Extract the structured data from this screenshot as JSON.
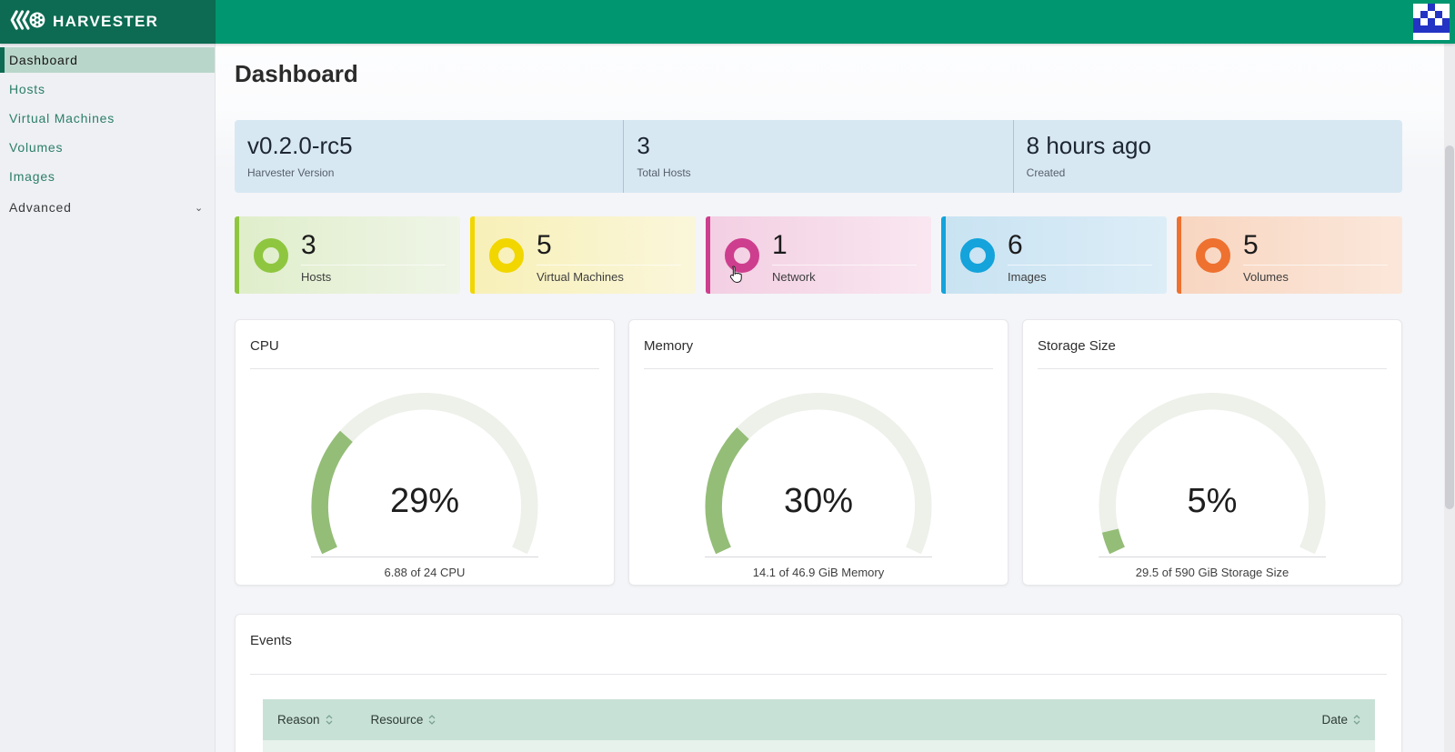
{
  "app": {
    "brand": "HARVESTER"
  },
  "sidebar": {
    "items": [
      {
        "label": "Dashboard",
        "selected": true
      },
      {
        "label": "Hosts"
      },
      {
        "label": "Virtual Machines"
      },
      {
        "label": "Volumes"
      },
      {
        "label": "Images"
      },
      {
        "label": "Advanced",
        "expandable": true
      }
    ]
  },
  "page": {
    "title": "Dashboard"
  },
  "info_strip": {
    "sections": [
      {
        "value": "v0.2.0-rc5",
        "label": "Harvester Version"
      },
      {
        "value": "3",
        "label": "Total Hosts"
      },
      {
        "value": "8 hours ago",
        "label": "Created"
      }
    ]
  },
  "stats": {
    "cards": [
      {
        "count": "3",
        "label": "Hosts",
        "accent": "#8fc640",
        "bg_from": "#e0eecb",
        "bg_to": "#eff5e7"
      },
      {
        "count": "5",
        "label": "Virtual Machines",
        "accent": "#f2d600",
        "bg_from": "#f8f0b8",
        "bg_to": "#faf6da"
      },
      {
        "count": "1",
        "label": "Network",
        "accent": "#ce3e8e",
        "bg_from": "#f3cfe3",
        "bg_to": "#f9e7f0"
      },
      {
        "count": "6",
        "label": "Images",
        "accent": "#14a3db",
        "bg_from": "#c9e3f2",
        "bg_to": "#dcedf7"
      },
      {
        "count": "5",
        "label": "Volumes",
        "accent": "#ee7130",
        "bg_from": "#f8d6c1",
        "bg_to": "#fbe7da"
      }
    ]
  },
  "gauges": [
    {
      "title": "CPU",
      "percent": 29,
      "percent_label": "29%",
      "detail": "6.88 of 24 CPU"
    },
    {
      "title": "Memory",
      "percent": 30,
      "percent_label": "30%",
      "detail": "14.1 of 46.9 GiB Memory"
    },
    {
      "title": "Storage Size",
      "percent": 5,
      "percent_label": "5%",
      "detail": "29.5 of 590 GiB Storage Size"
    }
  ],
  "chart_data": [
    {
      "type": "gauge",
      "title": "CPU",
      "value_percent": 29,
      "used": 6.88,
      "total": 24,
      "unit": "CPU",
      "label": "6.88 of 24 CPU",
      "fill_color": "#94bd77",
      "track_color": "#edf1ea"
    },
    {
      "type": "gauge",
      "title": "Memory",
      "value_percent": 30,
      "used": 14.1,
      "total": 46.9,
      "unit": "GiB",
      "label": "14.1 of 46.9 GiB Memory",
      "fill_color": "#94bd77",
      "track_color": "#edf1ea"
    },
    {
      "type": "gauge",
      "title": "Storage Size",
      "value_percent": 5,
      "used": 29.5,
      "total": 590,
      "unit": "GiB",
      "label": "29.5 of 590 GiB Storage Size",
      "fill_color": "#94bd77",
      "track_color": "#edf1ea"
    }
  ],
  "events": {
    "title": "Events",
    "columns": [
      {
        "label": "Reason",
        "sortable": true
      },
      {
        "label": "Resource",
        "sortable": true
      },
      {
        "label": "Date",
        "sortable": true
      }
    ]
  },
  "colors": {
    "topbar": "#00966f",
    "brand_bg": "#0c6b52",
    "sidebar_selected_bg": "#b9d6ca",
    "sidebar_link": "#2c7e68",
    "info_strip_bg": "#d8e8f3",
    "gauge_fill": "#94bd77",
    "gauge_track": "#edf1ea",
    "events_header_bg": "#c8e1d6"
  }
}
